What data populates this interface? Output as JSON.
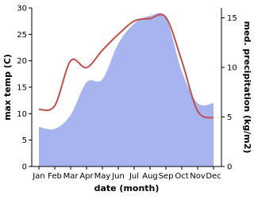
{
  "chart_data": {
    "type": "line-area",
    "x_label": "date (month)",
    "y_label": "max temp (C)",
    "y2_label": "med. precipitation (kg/m2)",
    "categories": [
      "Jan",
      "Feb",
      "Mar",
      "Apr",
      "May",
      "Jun",
      "Jul",
      "Aug",
      "Sep",
      "Oct",
      "Nov",
      "Dec"
    ],
    "ylim": [
      0,
      30
    ],
    "yticks": [
      0,
      5,
      10,
      15,
      20,
      25,
      30
    ],
    "y2lim": [
      0,
      16
    ],
    "y2ticks": [
      0,
      5,
      10,
      15
    ],
    "series": [
      {
        "name": "max temp",
        "color": "#c0504d",
        "kind": "line",
        "values": [
          10.8,
          11.5,
          20,
          18.7,
          22,
          25,
          27.5,
          28,
          28.2,
          20,
          10.5,
          9.2
        ]
      },
      {
        "name": "med. precipitation",
        "color": "#a8b4f0",
        "kind": "area",
        "axis": "y2",
        "values": [
          4.0,
          3.8,
          5.2,
          8.5,
          8.8,
          12.4,
          14.4,
          15.2,
          15.0,
          9.6,
          6.4,
          6.4
        ]
      }
    ]
  }
}
